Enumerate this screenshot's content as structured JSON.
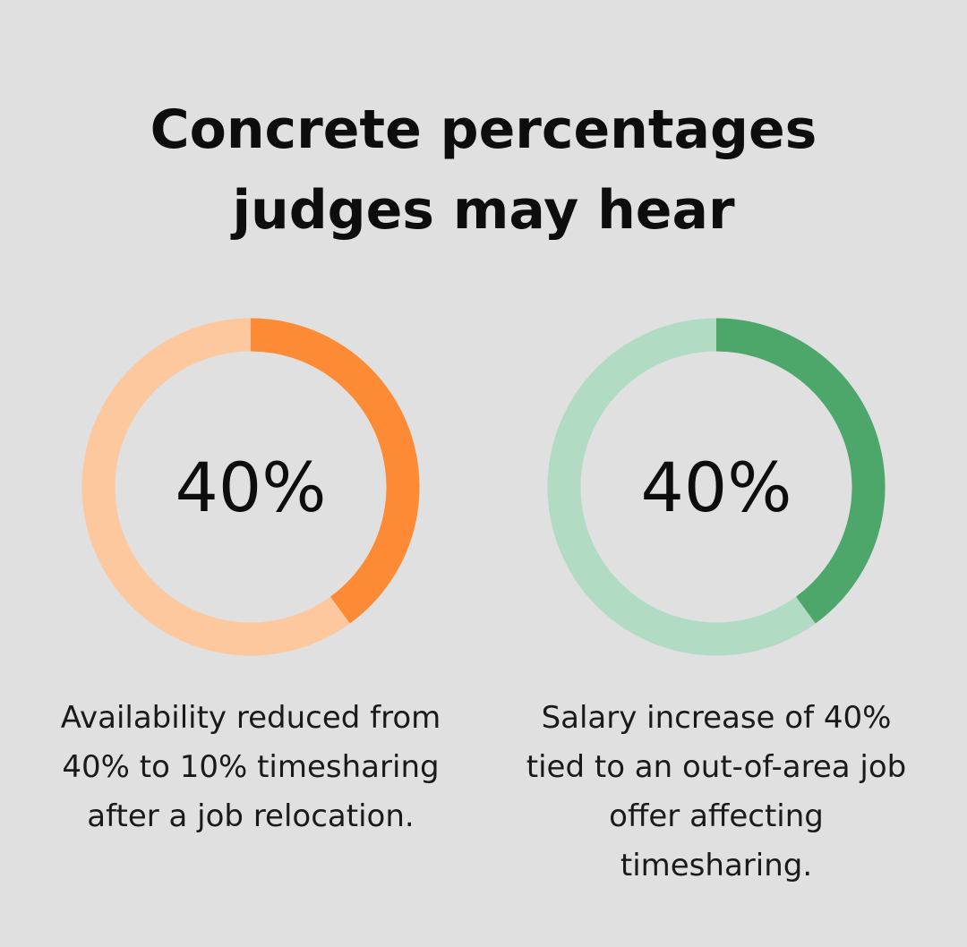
{
  "title_lines": [
    "Concrete percentages",
    "judges may hear"
  ],
  "chart_data": [
    {
      "type": "donut",
      "value_percent": 40,
      "value_label": "40%",
      "caption": "Availability reduced from 40% to 10% timesharing after a job relocation.",
      "caption_lines": [
        "Availability reduced from",
        "40% to 10% timesharing",
        "after a job relocation."
      ],
      "colors": {
        "filled": "#fd8a35",
        "track": "#fec89e"
      }
    },
    {
      "type": "donut",
      "value_percent": 40,
      "value_label": "40%",
      "caption": "Salary increase of 40% tied to an out-of-area job offer affecting timesharing.",
      "caption_lines": [
        "Salary increase of 40%",
        "tied to an out-of-area job",
        "offer affecting",
        "timesharing."
      ],
      "colors": {
        "filled": "#4da76b",
        "track": "#b1dbc2"
      }
    }
  ]
}
